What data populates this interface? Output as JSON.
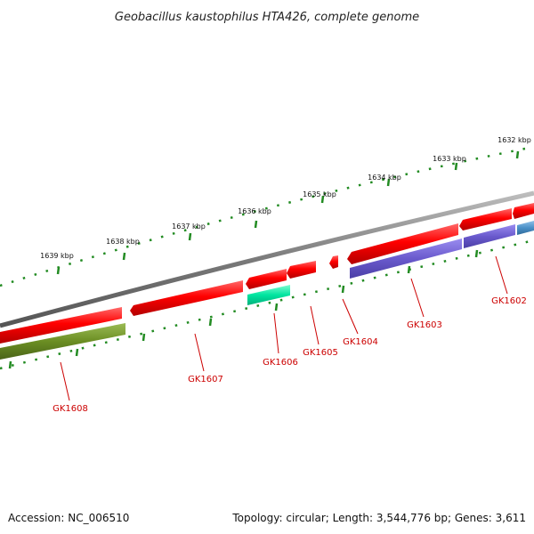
{
  "title": "Geobacillus kaustophilus HTA426, complete genome",
  "accession_text": "Accession: NC_006510",
  "topology_text": "Topology: circular; Length: 3,544,776 bp; Genes: 3,611",
  "ticks": [
    "1632 kbp",
    "1633 kbp",
    "1634 kbp",
    "1635 kbp",
    "1636 kbp",
    "1637 kbp",
    "1638 kbp",
    "1639 kbp"
  ],
  "genes": [
    {
      "name": "GK1602",
      "color": "#ff0000"
    },
    {
      "name": "GK1603",
      "color": "#ff0000"
    },
    {
      "name": "GK1604",
      "color": "#ff0000"
    },
    {
      "name": "GK1605",
      "color": "#ff0000"
    },
    {
      "name": "GK1606",
      "color": "#ff0000"
    },
    {
      "name": "GK1607",
      "color": "#ff0000"
    },
    {
      "name": "GK1608",
      "color": "#ff0000"
    }
  ],
  "colors": {
    "cds_forward": "#ff0000",
    "cds_reverse": "#ff0000",
    "blast_blue": "#6a5acd",
    "blast_teal": "#00e5a0",
    "blast_olive": "#6b8e23",
    "blast_light_blue": "#4a90c8",
    "backbone": "#808080",
    "ticks": "#228b22",
    "label": "#cc0000"
  }
}
